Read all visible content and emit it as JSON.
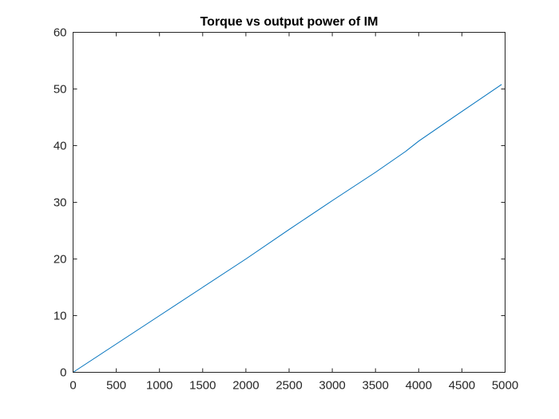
{
  "chart_data": {
    "type": "line",
    "title": "Torque vs output power of IM",
    "xlabel": "",
    "ylabel": "",
    "xlim": [
      0,
      5000
    ],
    "ylim": [
      0,
      60
    ],
    "xticks": [
      0,
      500,
      1000,
      1500,
      2000,
      2500,
      3000,
      3500,
      4000,
      4500,
      5000
    ],
    "yticks": [
      0,
      10,
      20,
      30,
      40,
      50,
      60
    ],
    "grid": false,
    "box": true,
    "series": [
      {
        "color": "#0072BD",
        "x": [
          0,
          500,
          1000,
          1500,
          2000,
          2500,
          3000,
          3500,
          3850,
          4000,
          4420,
          4960
        ],
        "y": [
          0,
          5.0,
          10.0,
          15.0,
          20.0,
          25.2,
          30.3,
          35.3,
          39.0,
          40.8,
          45.2,
          50.8
        ]
      }
    ]
  }
}
